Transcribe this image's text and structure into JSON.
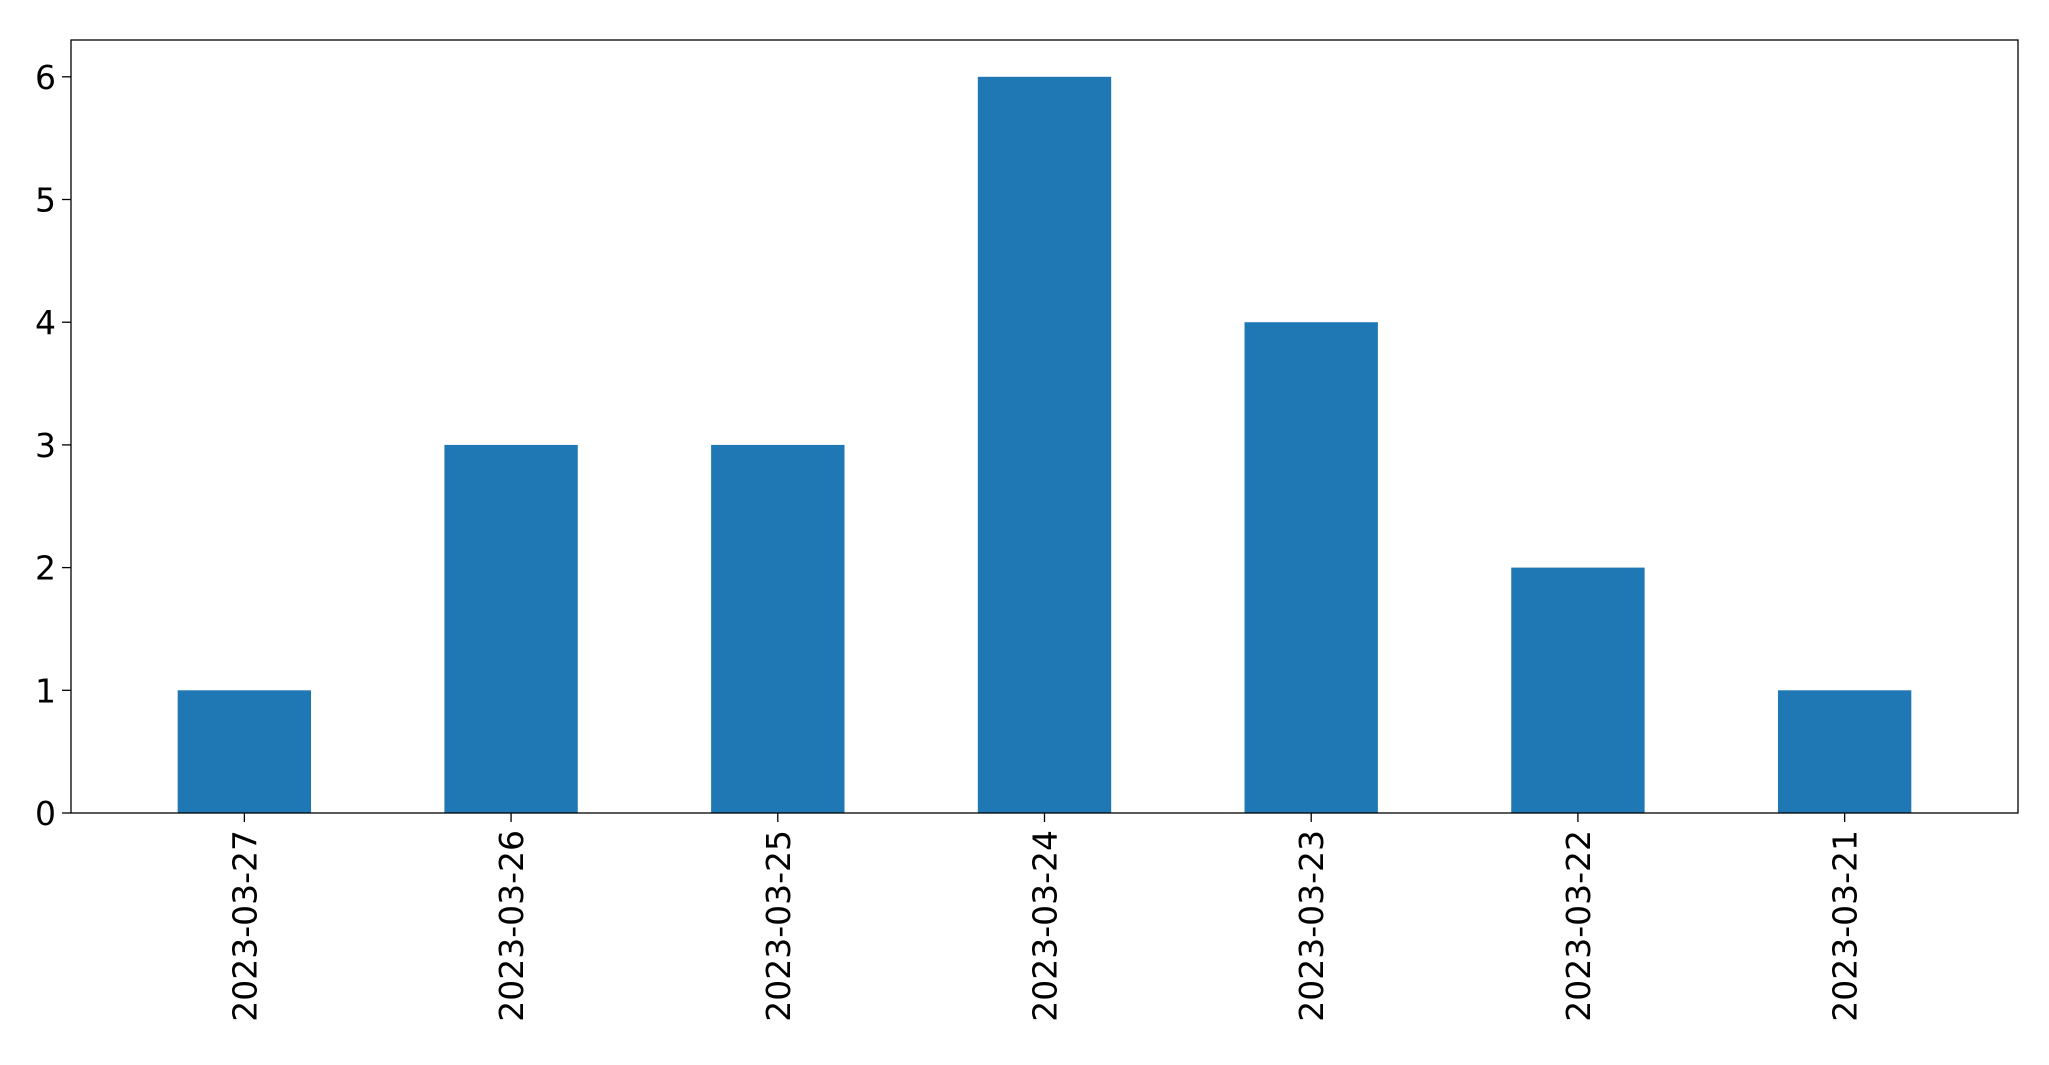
{
  "chart_data": {
    "type": "bar",
    "categories": [
      "2023-03-27",
      "2023-03-26",
      "2023-03-25",
      "2023-03-24",
      "2023-03-23",
      "2023-03-22",
      "2023-03-21"
    ],
    "values": [
      1,
      3,
      3,
      6,
      4,
      2,
      1
    ],
    "title": "",
    "xlabel": "",
    "ylabel": "",
    "ylim": [
      0,
      6.3
    ],
    "yticks": [
      0,
      1,
      2,
      3,
      4,
      5,
      6
    ],
    "grid": false,
    "legend": "none",
    "bar_color": "#1f77b4"
  }
}
